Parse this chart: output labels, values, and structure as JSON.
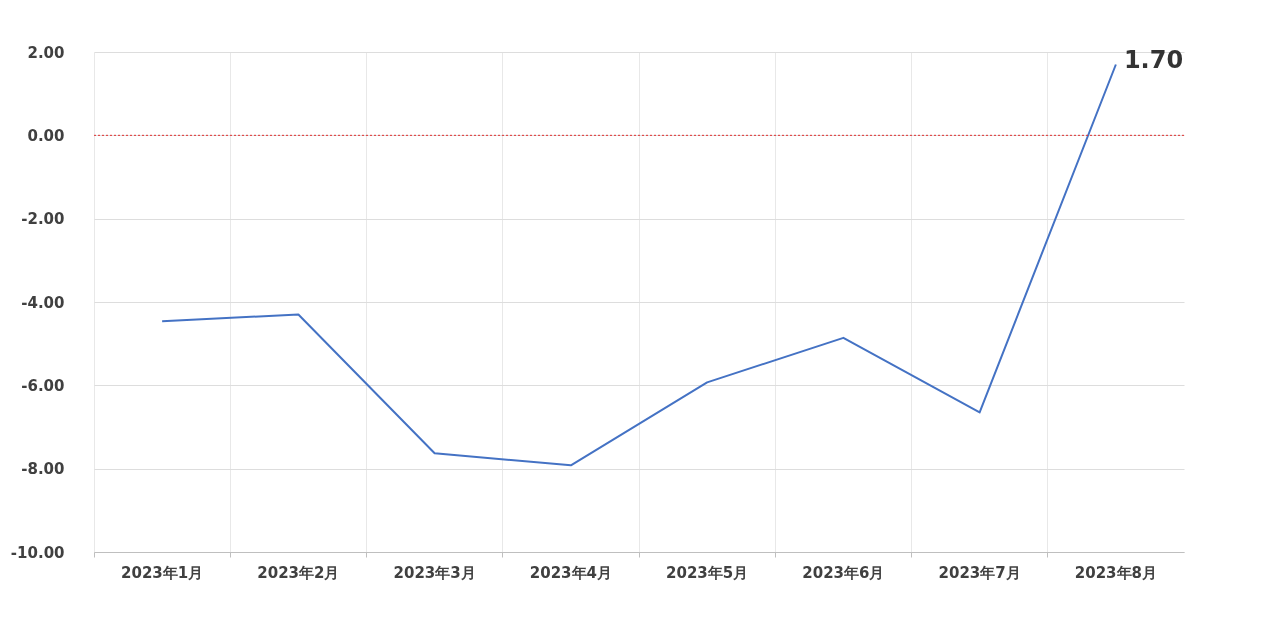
{
  "chart_data": {
    "type": "line",
    "categories": [
      "2023年1月",
      "2023年2月",
      "2023年3月",
      "2023年4月",
      "2023年5月",
      "2023年6月",
      "2023年7月",
      "2023年8月"
    ],
    "series": [
      {
        "color": "#4472c4",
        "values": [
          -4.46,
          -4.3,
          -7.63,
          -7.92,
          -5.93,
          -4.86,
          -6.65,
          1.7
        ],
        "value_labels": [
          null,
          null,
          null,
          null,
          null,
          null,
          null,
          "1.70"
        ]
      }
    ],
    "ylim": [
      -10,
      2
    ],
    "yticks": [
      {
        "value": -10,
        "label": "-10.00"
      },
      {
        "value": -8,
        "label": "-8.00"
      },
      {
        "value": -6,
        "label": "-6.00"
      },
      {
        "value": -4,
        "label": "-4.00"
      },
      {
        "value": -2,
        "label": "-2.00"
      },
      {
        "value": 0,
        "label": "0.00"
      },
      {
        "value": 2,
        "label": "2.00"
      }
    ],
    "ref_lines": [
      {
        "axis": "y",
        "value": 0,
        "color": "#e03030",
        "line_style": "dotted"
      }
    ],
    "grid": true,
    "marker": "none",
    "line_style": "solid"
  }
}
